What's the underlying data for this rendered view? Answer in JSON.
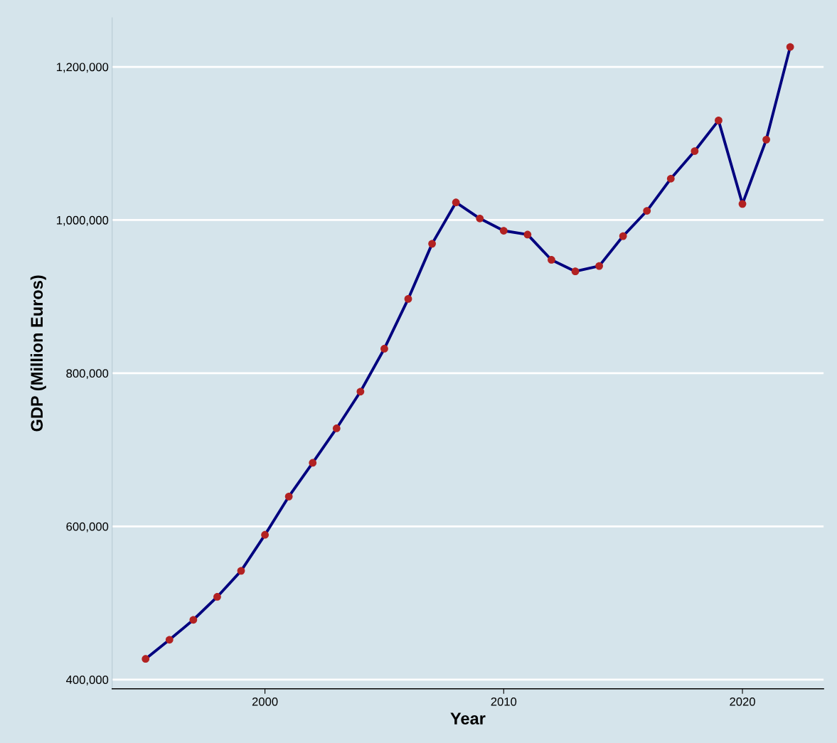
{
  "chart_data": {
    "type": "line",
    "xlabel": "Year",
    "ylabel": "GDP (Million Euros)",
    "x": [
      1995,
      1996,
      1997,
      1998,
      1999,
      2000,
      2001,
      2002,
      2003,
      2004,
      2005,
      2006,
      2007,
      2008,
      2009,
      2010,
      2011,
      2012,
      2013,
      2014,
      2015,
      2016,
      2017,
      2018,
      2019,
      2020,
      2021,
      2022
    ],
    "series": [
      {
        "color": "#00007f",
        "colors": [
          "#b22222",
          "#b22222",
          "#b22222",
          "#b22222",
          "#b22222",
          "#b22222",
          "#b22222",
          "#b22222",
          "#b22222",
          "#b22222",
          "#b22222",
          "#b22222",
          "#b22222",
          "#b22222",
          "#b22222",
          "#b22222",
          "#b22222",
          "#b22222",
          "#b22222",
          "#b22222",
          "#b22222",
          "#b22222",
          "#b22222",
          "#b22222",
          "#b22222",
          "#b22222",
          "#b22222",
          "#b22222"
        ],
        "values": [
          427000,
          452000,
          478000,
          508000,
          542000,
          589000,
          639000,
          683000,
          728000,
          776000,
          832000,
          897000,
          969000,
          1023000,
          1002000,
          986000,
          981000,
          948000,
          933000,
          940000,
          979000,
          1012000,
          1054000,
          1090000,
          1130000,
          1021000,
          1105000,
          1226000
        ]
      }
    ],
    "xlim": [
      1993.6,
      2023.4
    ],
    "ylim": [
      388000,
      1264000
    ],
    "xticks": [
      2000,
      2010,
      2020
    ],
    "yticks": [
      {
        "value": 400000,
        "label": "400,000"
      },
      {
        "value": 600000,
        "label": "600,000"
      },
      {
        "value": 800000,
        "label": "800,000"
      },
      {
        "value": 1000000,
        "label": "1,000,000"
      },
      {
        "value": 1200000,
        "label": "1,200,000"
      }
    ],
    "grid": "y",
    "marker": "circle",
    "line_style": "solid",
    "legend": false
  }
}
